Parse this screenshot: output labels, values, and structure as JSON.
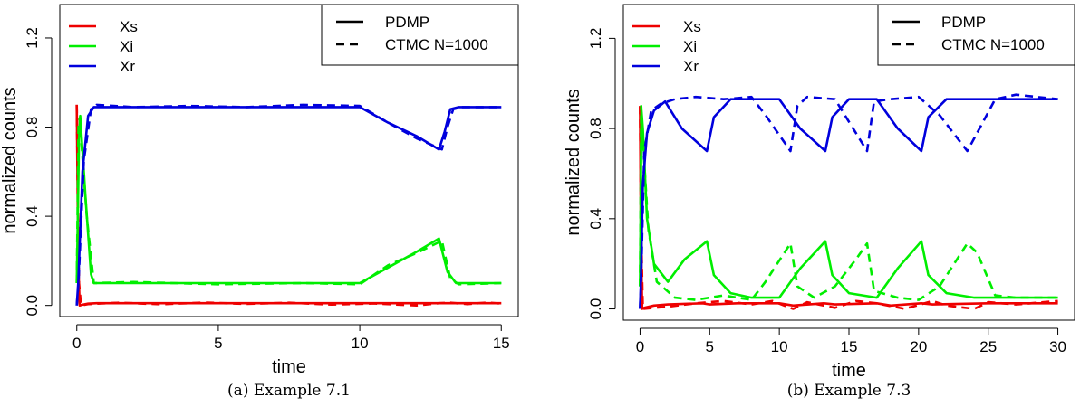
{
  "colors": {
    "Xs": "#ee0000",
    "Xi": "#00ee00",
    "Xr": "#0000dd"
  },
  "chart_data": [
    {
      "type": "line",
      "caption": "(a) Example 7.1",
      "xlabel": "time",
      "ylabel": "normalized counts",
      "xlim": [
        -0.6,
        15.6
      ],
      "ylim": [
        -0.05,
        1.35
      ],
      "xticks": [
        0,
        5,
        10,
        15
      ],
      "yticks": [
        0.0,
        0.4,
        0.8,
        1.2
      ],
      "xtick_labels": [
        "0",
        "5",
        "10",
        "15"
      ],
      "ytick_labels": [
        "0.0",
        "0.4",
        "0.8",
        "1.2"
      ],
      "legend_species": [
        "Xs",
        "Xi",
        "Xr"
      ],
      "legend_model": [
        "PDMP",
        "CTMC N=1000"
      ],
      "series": [
        {
          "name": "Xs",
          "model": "PDMP",
          "x": [
            0,
            0.02,
            0.05,
            0.1,
            0.2,
            0.4,
            0.7,
            10,
            12.8,
            13.1,
            13.5,
            15
          ],
          "y": [
            0.9,
            0.6,
            0.2,
            0.0,
            0.003,
            0.008,
            0.01,
            0.01,
            0.01,
            0.01,
            0.01,
            0.01
          ]
        },
        {
          "name": "Xs",
          "model": "CTMC N=1000",
          "x": [
            0,
            0.03,
            0.08,
            0.15,
            0.4,
            1.5,
            3,
            4.5,
            6,
            7.5,
            9,
            10.5,
            12,
            12.8,
            13.2,
            13.8,
            14.5,
            15
          ],
          "y": [
            0.9,
            0.55,
            0.1,
            0.0,
            0.006,
            0.012,
            0.005,
            0.013,
            0.007,
            0.012,
            0.004,
            0.009,
            0.0,
            0.01,
            0.012,
            0.006,
            0.013,
            0.008
          ]
        },
        {
          "name": "Xi",
          "model": "PDMP",
          "x": [
            0,
            0.08,
            0.12,
            0.3,
            0.5,
            0.6,
            10,
            11,
            12,
            12.8,
            13.1,
            13.4,
            15
          ],
          "y": [
            0.1,
            0.75,
            0.85,
            0.5,
            0.14,
            0.1,
            0.1,
            0.17,
            0.24,
            0.3,
            0.15,
            0.1,
            0.1
          ]
        },
        {
          "name": "Xi",
          "model": "CTMC N=1000",
          "x": [
            0,
            0.06,
            0.1,
            0.35,
            0.6,
            2,
            5,
            8,
            10,
            11,
            12,
            12.9,
            13.2,
            13.5,
            15
          ],
          "y": [
            0.1,
            0.8,
            0.84,
            0.4,
            0.1,
            0.105,
            0.095,
            0.1,
            0.095,
            0.18,
            0.235,
            0.29,
            0.12,
            0.095,
            0.1
          ]
        },
        {
          "name": "Xr",
          "model": "PDMP",
          "x": [
            0,
            0.05,
            0.2,
            0.4,
            0.6,
            10,
            11,
            12,
            12.8,
            13.0,
            13.2,
            13.5,
            15
          ],
          "y": [
            0.0,
            0.1,
            0.6,
            0.85,
            0.89,
            0.89,
            0.82,
            0.76,
            0.7,
            0.78,
            0.88,
            0.89,
            0.89
          ]
        },
        {
          "name": "Xr",
          "model": "CTMC N=1000",
          "x": [
            0,
            0.06,
            0.25,
            0.5,
            0.7,
            2,
            4,
            6,
            8,
            10,
            11,
            12,
            12.9,
            13.1,
            13.3,
            13.6,
            15
          ],
          "y": [
            0.0,
            0.1,
            0.65,
            0.88,
            0.9,
            0.89,
            0.895,
            0.89,
            0.9,
            0.895,
            0.82,
            0.75,
            0.7,
            0.8,
            0.88,
            0.89,
            0.89
          ]
        }
      ]
    },
    {
      "type": "line",
      "caption": "(b) Example 7.3",
      "xlabel": "time",
      "ylabel": "normalized counts",
      "xlim": [
        -1.2,
        31.2
      ],
      "ylim": [
        -0.05,
        1.35
      ],
      "xticks": [
        0,
        5,
        10,
        15,
        20,
        25,
        30
      ],
      "yticks": [
        0.0,
        0.4,
        0.8,
        1.2
      ],
      "xtick_labels": [
        "0",
        "5",
        "10",
        "15",
        "20",
        "25",
        "30"
      ],
      "ytick_labels": [
        "0.0",
        "0.4",
        "0.8",
        "1.2"
      ],
      "legend_species": [
        "Xs",
        "Xi",
        "Xr"
      ],
      "legend_model": [
        "PDMP",
        "CTMC N=1000"
      ],
      "series": [
        {
          "name": "Xs",
          "model": "PDMP",
          "x": [
            0,
            0.05,
            0.15,
            0.3,
            1,
            2,
            4.5,
            5,
            7,
            10,
            11,
            13.2,
            14,
            17,
            18,
            20.2,
            21,
            25,
            30
          ],
          "y": [
            0.9,
            0.4,
            0.0,
            0.005,
            0.015,
            0.02,
            0.025,
            0.02,
            0.025,
            0.025,
            0.015,
            0.025,
            0.02,
            0.025,
            0.015,
            0.025,
            0.02,
            0.025,
            0.025
          ]
        },
        {
          "name": "Xs",
          "model": "CTMC N=1000",
          "x": [
            0,
            0.06,
            0.2,
            2,
            4,
            6,
            8,
            9.5,
            11,
            12,
            14,
            15.5,
            17,
            19,
            21,
            22,
            24,
            25,
            27,
            30
          ],
          "y": [
            0.9,
            0.4,
            0.0,
            0.01,
            0.025,
            0.035,
            0.02,
            0.035,
            0.0,
            0.03,
            0.005,
            0.035,
            0.025,
            0.0,
            0.035,
            0.015,
            0.0,
            0.03,
            0.02,
            0.035
          ]
        },
        {
          "name": "Xi",
          "model": "PDMP",
          "x": [
            0,
            0.1,
            0.2,
            0.5,
            1,
            2,
            3.2,
            4.8,
            5.3,
            6.5,
            8,
            10,
            11.5,
            13.3,
            13.8,
            15,
            17,
            18.5,
            20.2,
            20.7,
            22,
            24,
            26,
            30
          ],
          "y": [
            0.1,
            0.88,
            0.8,
            0.4,
            0.2,
            0.12,
            0.22,
            0.3,
            0.15,
            0.07,
            0.05,
            0.05,
            0.18,
            0.3,
            0.15,
            0.07,
            0.05,
            0.18,
            0.3,
            0.15,
            0.07,
            0.05,
            0.05,
            0.05
          ]
        },
        {
          "name": "Xi",
          "model": "CTMC N=1000",
          "x": [
            0,
            0.08,
            0.2,
            0.6,
            1.2,
            2.5,
            4,
            6,
            8,
            9,
            10.8,
            11.3,
            12.5,
            14,
            15.5,
            16.3,
            16.8,
            18.5,
            20,
            21.5,
            23.5,
            24.2,
            25.5,
            27,
            30
          ],
          "y": [
            0.1,
            0.9,
            0.75,
            0.35,
            0.12,
            0.05,
            0.04,
            0.06,
            0.04,
            0.12,
            0.29,
            0.1,
            0.05,
            0.1,
            0.22,
            0.29,
            0.08,
            0.05,
            0.04,
            0.1,
            0.29,
            0.25,
            0.06,
            0.05,
            0.05
          ]
        },
        {
          "name": "Xr",
          "model": "PDMP",
          "x": [
            0,
            0.05,
            0.2,
            0.5,
            1,
            1.8,
            3,
            4.8,
            5.3,
            6.5,
            10,
            11.5,
            13.3,
            13.8,
            15,
            17,
            18.5,
            20.2,
            20.7,
            22,
            30
          ],
          "y": [
            0.0,
            0.1,
            0.55,
            0.78,
            0.88,
            0.92,
            0.8,
            0.7,
            0.85,
            0.93,
            0.93,
            0.8,
            0.7,
            0.85,
            0.93,
            0.93,
            0.8,
            0.7,
            0.85,
            0.93,
            0.93
          ]
        },
        {
          "name": "Xr",
          "model": "CTMC N=1000",
          "x": [
            0,
            0.06,
            0.3,
            0.8,
            1.5,
            2.5,
            4,
            6,
            8,
            9,
            10.8,
            11.3,
            12,
            14,
            15.5,
            16.3,
            16.8,
            18,
            20,
            21.5,
            23.5,
            24.2,
            25.5,
            27,
            30
          ],
          "y": [
            0.0,
            0.1,
            0.7,
            0.88,
            0.91,
            0.93,
            0.94,
            0.93,
            0.94,
            0.86,
            0.7,
            0.9,
            0.94,
            0.93,
            0.78,
            0.7,
            0.92,
            0.93,
            0.94,
            0.86,
            0.7,
            0.78,
            0.93,
            0.95,
            0.93
          ]
        }
      ]
    }
  ]
}
